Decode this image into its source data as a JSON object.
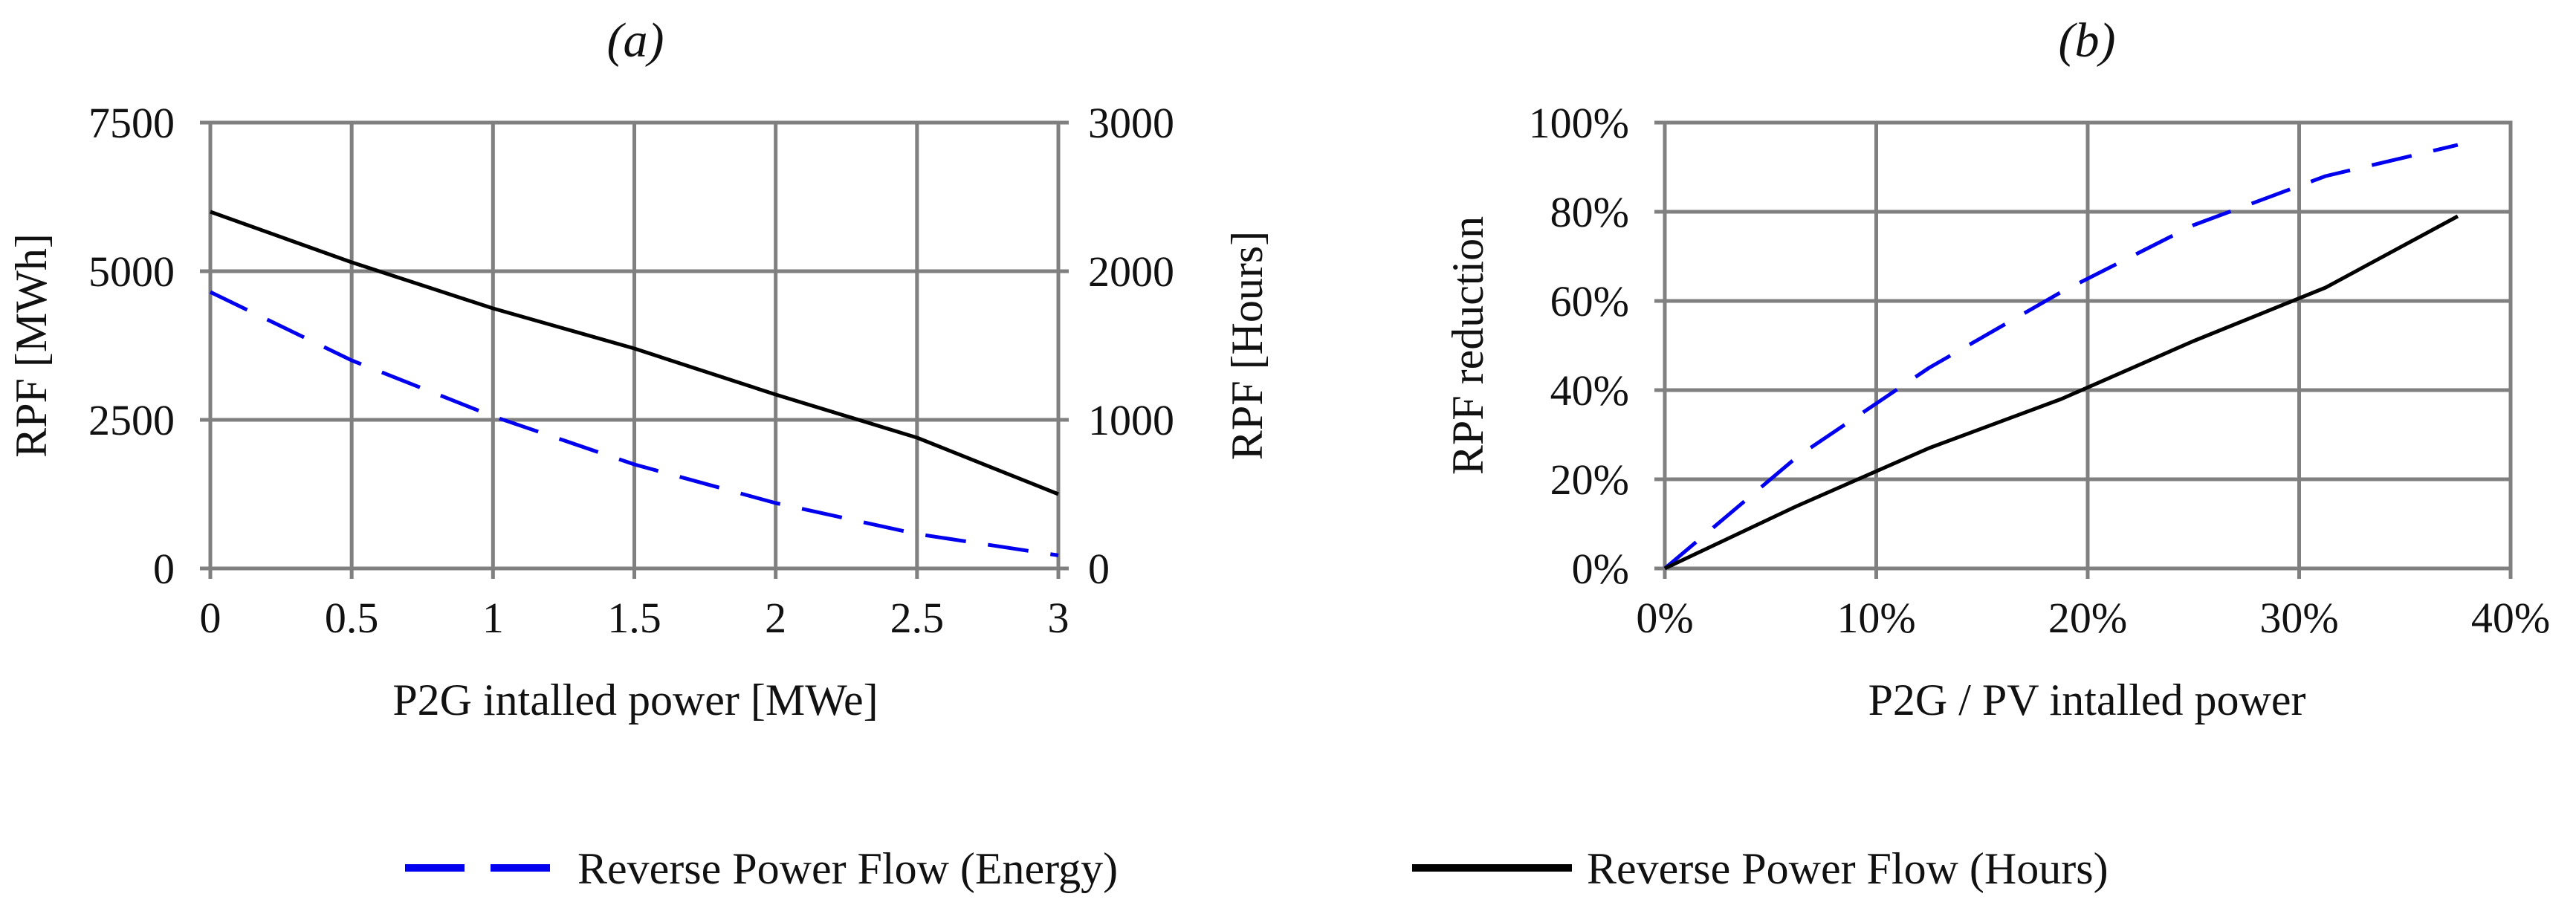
{
  "legend": {
    "energy_label": "Reverse Power Flow (Energy)",
    "hours_label": "Reverse Power Flow (Hours)"
  },
  "colors": {
    "energy": "#0000ee",
    "hours": "#000000",
    "grid": "#808080"
  },
  "chart_data": [
    {
      "type": "line",
      "title": "(a)",
      "xlabel": "P2G intalled power [MWe]",
      "ylabel": "RPF [MWh]",
      "y2label": "RPF [Hours]",
      "xlim": [
        0,
        3
      ],
      "ylim": [
        0,
        7500
      ],
      "y2lim": [
        0,
        3000
      ],
      "x_ticks": [
        "0",
        "0.5",
        "1",
        "1.5",
        "2",
        "2.5",
        "3"
      ],
      "y_ticks": [
        "0",
        "2500",
        "5000",
        "7500"
      ],
      "y2_ticks": [
        "0",
        "1000",
        "2000",
        "3000"
      ],
      "grid": true,
      "series": [
        {
          "name": "Reverse Power Flow (Energy)",
          "axis": "left",
          "style": "dashed",
          "x": [
            0,
            0.5,
            1,
            1.5,
            2,
            2.5,
            3
          ],
          "y": [
            4650,
            3500,
            2560,
            1750,
            1100,
            580,
            220
          ]
        },
        {
          "name": "Reverse Power Flow (Hours)",
          "axis": "right",
          "style": "solid",
          "x": [
            0,
            0.5,
            1,
            1.5,
            2,
            2.5,
            3
          ],
          "y": [
            2400,
            2060,
            1750,
            1480,
            1170,
            880,
            500
          ]
        }
      ]
    },
    {
      "type": "line",
      "title": "(b)",
      "xlabel": "P2G  / PV intalled power",
      "ylabel": "RPF reduction",
      "xlim": [
        0,
        40
      ],
      "ylim": [
        0,
        100
      ],
      "x_ticks": [
        "0%",
        "10%",
        "20%",
        "30%",
        "40%"
      ],
      "y_ticks": [
        "0%",
        "20%",
        "40%",
        "60%",
        "80%",
        "100%"
      ],
      "grid": true,
      "series": [
        {
          "name": "Reverse Power Flow (Energy)",
          "style": "dashed",
          "x": [
            0,
            6.25,
            12.5,
            18.75,
            25,
            31.25,
            37.5
          ],
          "y": [
            0,
            25,
            45,
            62,
            77,
            88,
            95
          ]
        },
        {
          "name": "Reverse Power Flow (Hours)",
          "style": "solid",
          "x": [
            0,
            6.25,
            12.5,
            18.75,
            25,
            31.25,
            37.5
          ],
          "y": [
            0,
            14,
            27,
            38,
            51,
            63,
            79
          ]
        }
      ]
    }
  ]
}
